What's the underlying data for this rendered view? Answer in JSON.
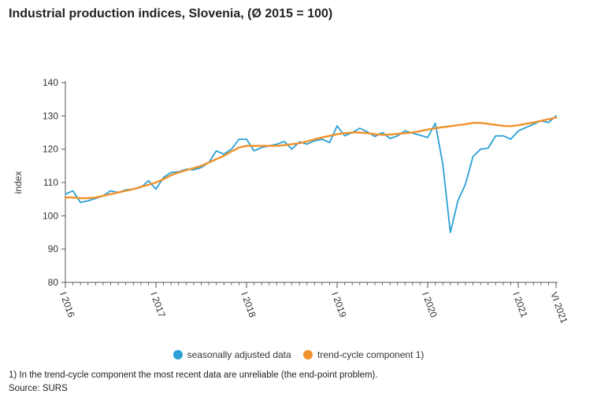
{
  "title": "Industrial production indices, Slovenia, (Ø 2015 = 100)",
  "footnote": "1) In the trend-cycle component the most recent data are unreliable (the end-point problem).",
  "source": "Source: SURS",
  "colors": {
    "seasonal": "#2aa0d6",
    "trend": "#f0922c",
    "axis": "#555555",
    "grid": "#e0e0e0"
  },
  "chart_data": {
    "type": "line",
    "title": "Industrial production indices, Slovenia, (Ø 2015 = 100)",
    "xlabel": "",
    "ylabel": "index",
    "ylim": [
      80,
      140
    ],
    "yticks": [
      80,
      90,
      100,
      110,
      120,
      130,
      140
    ],
    "x_range": [
      "2016-01",
      "2021-06"
    ],
    "xtick_labels": [
      {
        "label": "I 2016",
        "x": "2016-01"
      },
      {
        "label": "I 2017",
        "x": "2017-01"
      },
      {
        "label": "I 2018",
        "x": "2018-01"
      },
      {
        "label": "I 2019",
        "x": "2019-01"
      },
      {
        "label": "I 2020",
        "x": "2020-01"
      },
      {
        "label": "I 2021",
        "x": "2021-01"
      },
      {
        "label": "VI 2021",
        "x": "2021-06"
      }
    ],
    "grid": false,
    "legend_position": "bottom",
    "series": [
      {
        "name": "seasonally adjusted data",
        "color": "#2aa0d6",
        "values": [
          106.5,
          107.5,
          104.0,
          104.5,
          105.2,
          106.0,
          107.5,
          107.0,
          107.8,
          108.0,
          108.5,
          110.5,
          108.0,
          111.5,
          113.0,
          113.2,
          114.0,
          113.8,
          114.5,
          116.0,
          119.5,
          118.5,
          120.0,
          123.0,
          123.0,
          119.5,
          120.5,
          121.0,
          121.5,
          122.3,
          120.0,
          122.2,
          121.5,
          122.5,
          123.0,
          122.0,
          127.0,
          124.0,
          125.0,
          126.3,
          125.2,
          123.8,
          125.0,
          123.2,
          124.0,
          125.5,
          124.8,
          124.2,
          123.5,
          127.8,
          115.5,
          95.0,
          104.5,
          109.5,
          117.8,
          120.0,
          120.3,
          124.0,
          124.0,
          123.0,
          125.5,
          126.5,
          127.5,
          128.5,
          128.0,
          130.0
        ]
      },
      {
        "name": "trend-cycle component 1)",
        "color": "#f0922c",
        "values": [
          105.5,
          105.5,
          105.3,
          105.3,
          105.5,
          106.0,
          106.5,
          107.0,
          107.5,
          108.0,
          108.7,
          109.3,
          110.0,
          111.0,
          112.2,
          113.0,
          113.7,
          114.3,
          115.0,
          116.0,
          117.0,
          118.0,
          119.3,
          120.5,
          121.0,
          121.0,
          121.0,
          121.0,
          121.0,
          121.2,
          121.5,
          121.8,
          122.3,
          123.0,
          123.5,
          124.0,
          124.5,
          124.8,
          125.0,
          125.0,
          124.8,
          124.5,
          124.3,
          124.4,
          124.6,
          124.8,
          125.0,
          125.4,
          125.9,
          126.3,
          126.6,
          126.9,
          127.2,
          127.5,
          127.9,
          127.9,
          127.6,
          127.3,
          127.0,
          126.9,
          127.2,
          127.6,
          128.0,
          128.5,
          129.0,
          129.5
        ]
      }
    ]
  }
}
